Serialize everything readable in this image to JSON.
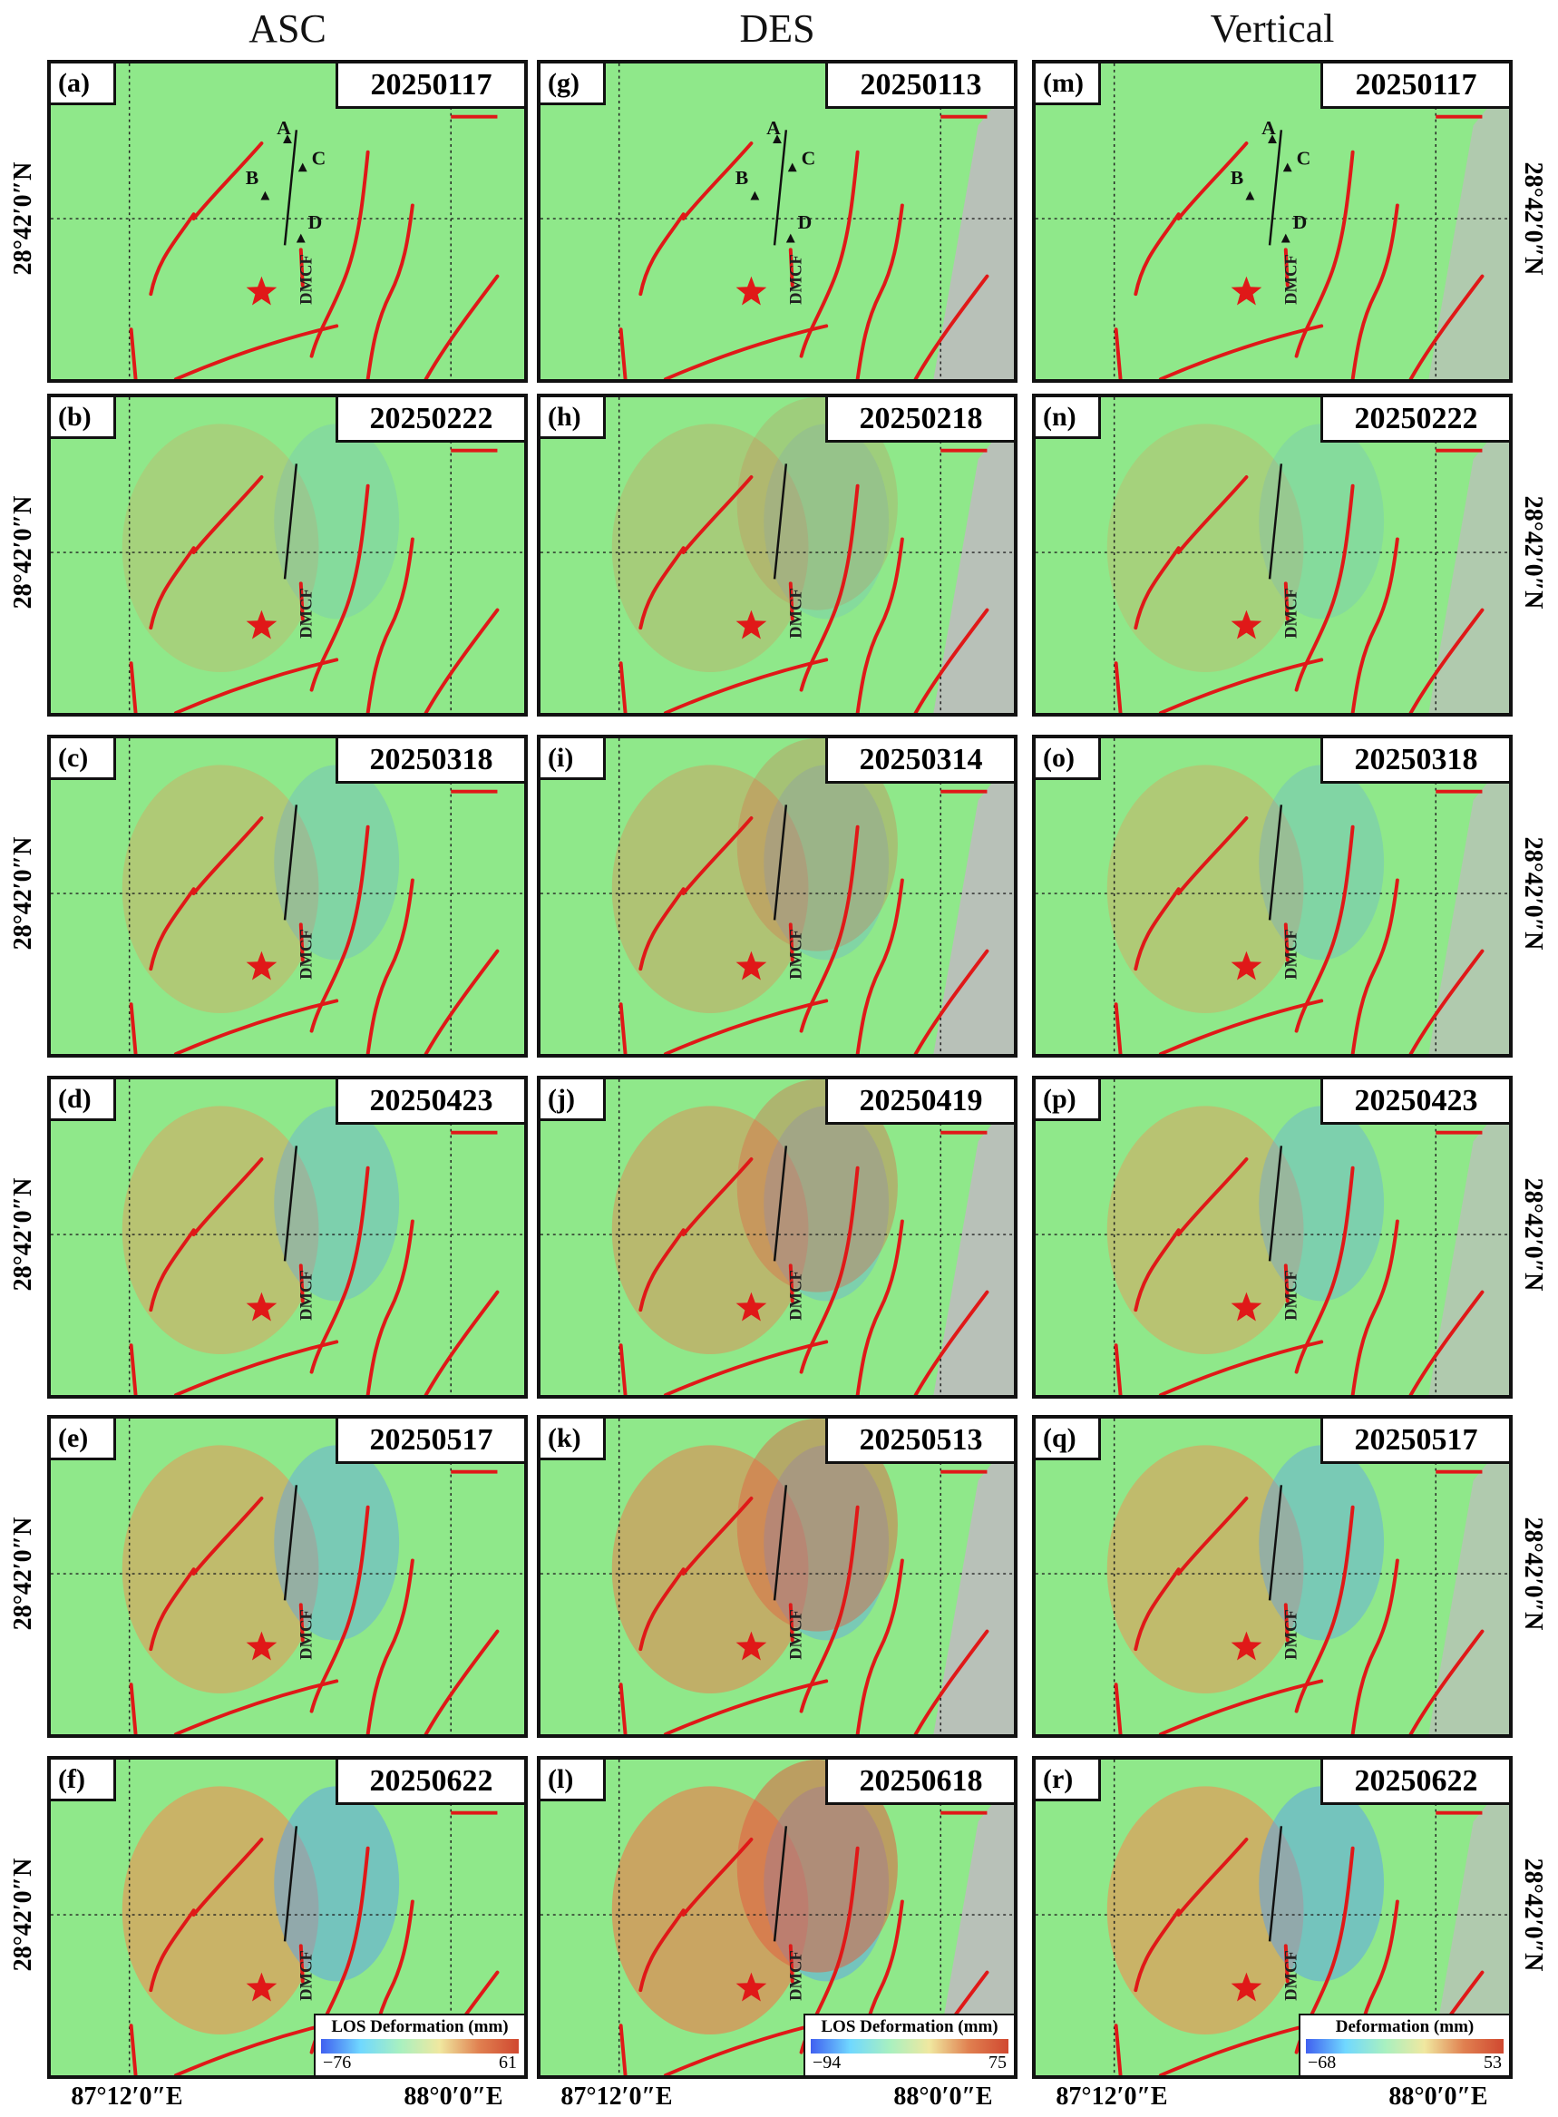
{
  "columns": [
    {
      "title": "ASC",
      "panels": [
        {
          "label": "(a)",
          "date": "20250117"
        },
        {
          "label": "(b)",
          "date": "20250222"
        },
        {
          "label": "(c)",
          "date": "20250318"
        },
        {
          "label": "(d)",
          "date": "20250423"
        },
        {
          "label": "(e)",
          "date": "20250517"
        },
        {
          "label": "(f)",
          "date": "20250622"
        }
      ],
      "colorbar": {
        "title": "LOS Deformation (mm)",
        "min": "−76",
        "max": "61"
      }
    },
    {
      "title": "DES",
      "panels": [
        {
          "label": "(g)",
          "date": "20250113"
        },
        {
          "label": "(h)",
          "date": "20250218"
        },
        {
          "label": "(i)",
          "date": "20250314"
        },
        {
          "label": "(j)",
          "date": "20250419"
        },
        {
          "label": "(k)",
          "date": "20250513"
        },
        {
          "label": "(l)",
          "date": "20250618"
        }
      ],
      "colorbar": {
        "title": "LOS Deformation (mm)",
        "min": "−94",
        "max": "75"
      }
    },
    {
      "title": "Vertical",
      "panels": [
        {
          "label": "(m)",
          "date": "20250117"
        },
        {
          "label": "(n)",
          "date": "20250222"
        },
        {
          "label": "(o)",
          "date": "20250318"
        },
        {
          "label": "(p)",
          "date": "20250423"
        },
        {
          "label": "(q)",
          "date": "20250517"
        },
        {
          "label": "(r)",
          "date": "20250622"
        }
      ],
      "colorbar": {
        "title": "Deformation (mm)",
        "min": "−68",
        "max": "53"
      }
    }
  ],
  "fault_label": "DMCF",
  "points": [
    "A",
    "B",
    "C",
    "D"
  ],
  "lat_label": "28°42′0″N",
  "lon_labels": [
    "87°12′0″E",
    "88°0′0″E"
  ],
  "colors": {
    "fault": "#e01818",
    "epicenter": "#e01818",
    "background": "#8fe88a"
  }
}
